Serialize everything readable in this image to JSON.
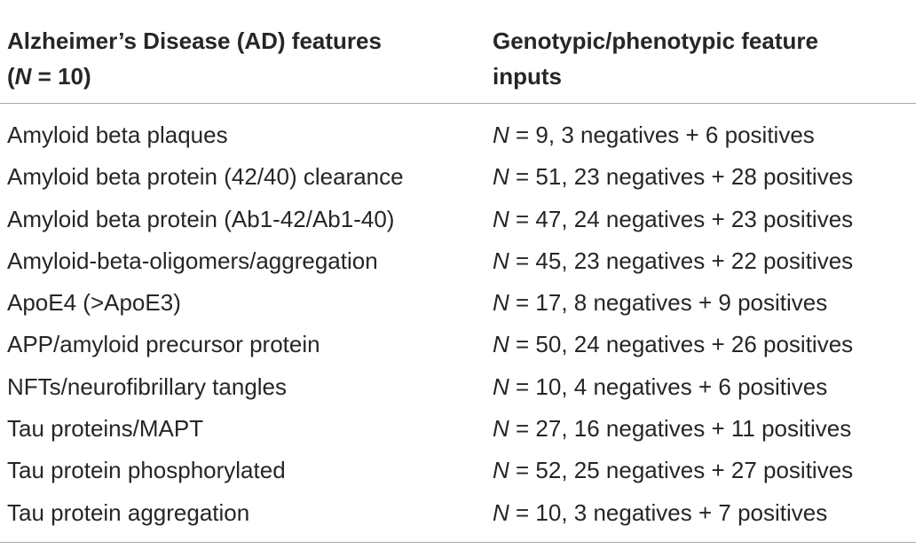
{
  "table": {
    "header": {
      "col1": {
        "line1": "Alzheimer’s Disease (AD) features",
        "line2_var": "N",
        "line2_rest": " = 10)",
        "line2_open": "("
      },
      "col2": {
        "line1": "Genotypic/phenotypic feature",
        "line2": "inputs"
      }
    },
    "rows": [
      {
        "feature": "Amyloid beta plaques",
        "n_var": "N",
        "inputs": " = 9, 3 negatives + 6 positives"
      },
      {
        "feature": "Amyloid beta protein (42/40) clearance",
        "n_var": "N",
        "inputs": " = 51, 23 negatives + 28 positives"
      },
      {
        "feature": "Amyloid beta protein (Ab1-42/Ab1-40)",
        "n_var": "N",
        "inputs": " = 47, 24 negatives + 23 positives"
      },
      {
        "feature": "Amyloid-beta-oligomers/aggregation",
        "n_var": "N",
        "inputs": " = 45, 23 negatives + 22 positives"
      },
      {
        "feature": "ApoE4 (>ApoE3)",
        "n_var": "N",
        "inputs": " = 17, 8 negatives + 9 positives"
      },
      {
        "feature": "APP/amyloid precursor protein",
        "n_var": "N",
        "inputs": " = 50, 24 negatives + 26 positives"
      },
      {
        "feature": "NFTs/neurofibrillary tangles",
        "n_var": "N",
        "inputs": " = 10, 4 negatives + 6 positives"
      },
      {
        "feature": "Tau proteins/MAPT",
        "n_var": "N",
        "inputs": " = 27, 16 negatives + 11 positives"
      },
      {
        "feature": "Tau protein phosphorylated",
        "n_var": "N",
        "inputs": " = 52, 25 negatives + 27 positives"
      },
      {
        "feature": "Tau protein aggregation",
        "n_var": "N",
        "inputs": " = 10, 3 negatives + 7 positives"
      }
    ]
  }
}
